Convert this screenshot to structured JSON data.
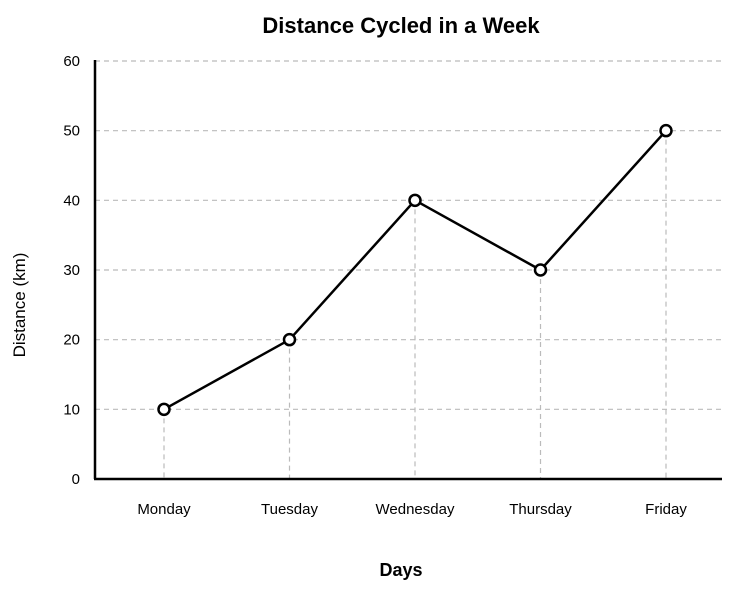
{
  "chart_data": {
    "type": "line",
    "title": "Distance Cycled in a Week",
    "xlabel": "Days",
    "ylabel": "Distance (km)",
    "categories": [
      "Monday",
      "Tuesday",
      "Wednesday",
      "Thursday",
      "Friday"
    ],
    "values": [
      10,
      20,
      40,
      30,
      50
    ],
    "ylim": [
      0,
      60
    ],
    "yticks": [
      "0",
      "10",
      "20",
      "30",
      "40",
      "50",
      "60"
    ],
    "grid": true,
    "line_color": "#000000",
    "grid_color": "#bbbbbb"
  }
}
